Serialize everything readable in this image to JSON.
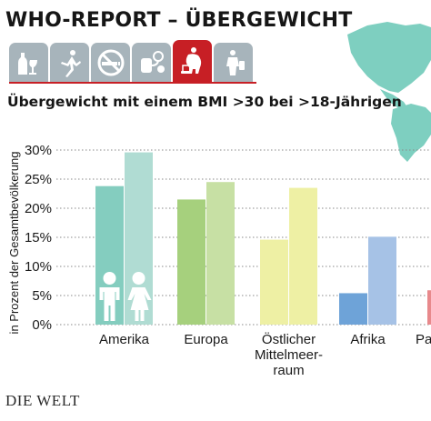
{
  "header": {
    "title": "WHO-REPORT – ÜBERGEWICHT"
  },
  "icon_strip": {
    "icons": [
      {
        "name": "alcohol-icon",
        "active": false
      },
      {
        "name": "physical-activity-icon",
        "active": false
      },
      {
        "name": "no-smoking-icon",
        "active": false
      },
      {
        "name": "blood-pressure-icon",
        "active": false
      },
      {
        "name": "overweight-icon",
        "active": true
      },
      {
        "name": "diabetes-icon",
        "active": false
      }
    ],
    "colors": {
      "tile": "#a7b4bb",
      "active_tile": "#c71f25",
      "glyph": "#ffffff"
    }
  },
  "map": {
    "color": "#7ecfc0"
  },
  "chart_data": {
    "type": "bar",
    "title": "Übergewicht mit einem BMI >30 bei >18-Jährigen",
    "ylabel": "in Prozent der Gesamtbevölkerung",
    "xlabel": "",
    "ylim": [
      0,
      30
    ],
    "y_ticks": [
      "0%",
      "5%",
      "10%",
      "15%",
      "20%",
      "25%",
      "30%"
    ],
    "grid": true,
    "categories": [
      {
        "lines": [
          "Amerika"
        ]
      },
      {
        "lines": [
          "Europa"
        ]
      },
      {
        "lines": [
          "Östlicher",
          "Mittelmeer-",
          "raum"
        ]
      },
      {
        "lines": [
          "Afrika"
        ]
      },
      {
        "lines": [
          "Pa"
        ]
      }
    ],
    "series": [
      {
        "values": [
          23.8,
          21.5,
          14.6,
          5.4,
          5.9
        ]
      },
      {
        "values": [
          29.6,
          24.5,
          23.5,
          15.1,
          null
        ]
      }
    ],
    "colors": [
      [
        "#84cdbf",
        "#b0dcd3"
      ],
      [
        "#a6d07d",
        "#c7e0a4"
      ],
      [
        "#eef0a4",
        "#eef0a4"
      ],
      [
        "#6ea3d8",
        "#a6c2e6"
      ],
      [
        "#e8898c",
        "#e8898c"
      ]
    ],
    "gender_icons": [
      "male-figure-icon",
      "female-figure-icon"
    ]
  },
  "footer": {
    "brand_text": "DIE WELT"
  }
}
